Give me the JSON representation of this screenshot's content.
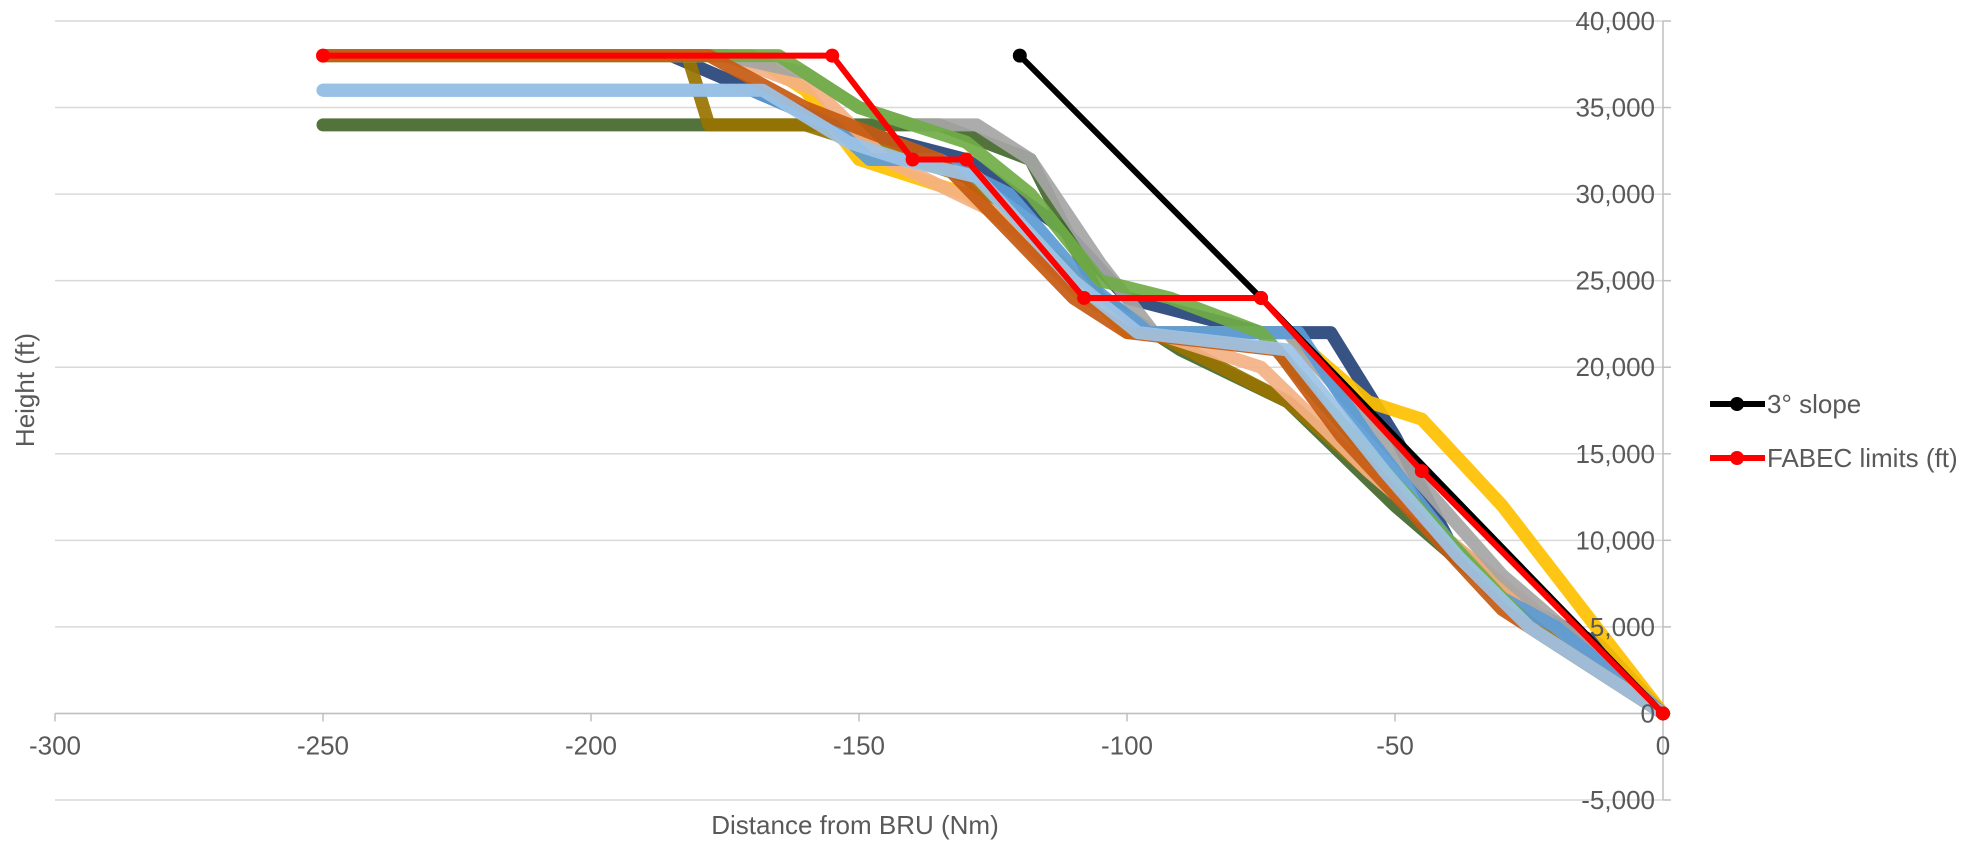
{
  "chart_data": {
    "type": "line",
    "title": "",
    "xlabel": "Distance from BRU (Nm)",
    "ylabel": "Height (ft)",
    "xlim": [
      -300,
      0
    ],
    "ylim": [
      -5000,
      40000
    ],
    "x_ticks": [
      -300,
      -250,
      -200,
      -150,
      -100,
      -50,
      0
    ],
    "y_ticks": [
      -5000,
      0,
      5000,
      10000,
      15000,
      20000,
      25000,
      30000,
      35000,
      40000
    ],
    "x_tick_labels": [
      "-300",
      "-250",
      "-200",
      "-150",
      "-100",
      "-50",
      "0"
    ],
    "y_tick_labels": [
      "-5,000",
      "0",
      "5,000",
      "10,000",
      "15,000",
      "20,000",
      "25,000",
      "30,000",
      "35,000",
      "40,000"
    ],
    "grid": "horizontal",
    "legend_position": "right",
    "legend": [
      "3° slope",
      "FABEC limits (ft)"
    ],
    "series": [
      {
        "name": "3° slope",
        "color": "#000000",
        "x": [
          -120,
          -75,
          0
        ],
        "y": [
          38000,
          24000,
          0
        ]
      },
      {
        "name": "FABEC limits (ft)",
        "color": "#ff0000",
        "x": [
          -250,
          -155,
          -140,
          -130,
          -108,
          -75,
          -45,
          0
        ],
        "y": [
          38000,
          38000,
          32000,
          32000,
          24000,
          24000,
          14000,
          0
        ]
      }
    ],
    "background_tracks": [
      {
        "color": "#264478",
        "x": [
          -250,
          -185,
          -170,
          -155,
          -130,
          -112,
          -100,
          -75,
          -62,
          -50,
          -40,
          -25,
          -12,
          0
        ],
        "y": [
          38000,
          38000,
          36000,
          34000,
          32000,
          28000,
          24000,
          22000,
          22000,
          16000,
          10000,
          6000,
          4000,
          0
        ]
      },
      {
        "color": "#43682b",
        "x": [
          -250,
          -160,
          -135,
          -118,
          -105,
          -90,
          -70,
          -50,
          -35,
          -20,
          0
        ],
        "y": [
          34000,
          34000,
          34000,
          32000,
          24000,
          21000,
          18000,
          12000,
          8000,
          5000,
          0
        ]
      },
      {
        "color": "#997300",
        "x": [
          -250,
          -182,
          -178,
          -160,
          -130,
          -108,
          -95,
          -70,
          -55,
          -40,
          -25,
          0
        ],
        "y": [
          38000,
          38000,
          34000,
          34000,
          31000,
          24000,
          22000,
          18000,
          14000,
          10000,
          6000,
          0
        ]
      },
      {
        "color": "#ffc000",
        "x": [
          -250,
          -170,
          -160,
          -150,
          -130,
          -112,
          -100,
          -70,
          -55,
          -45,
          -30,
          -15,
          0
        ],
        "y": [
          38000,
          38000,
          36000,
          32000,
          30000,
          26000,
          22000,
          22000,
          18000,
          17000,
          12000,
          6000,
          0
        ]
      },
      {
        "color": "#f4b183",
        "x": [
          -250,
          -175,
          -158,
          -145,
          -125,
          -108,
          -95,
          -75,
          -55,
          -40,
          -20,
          0
        ],
        "y": [
          38000,
          38000,
          36000,
          32000,
          29000,
          24000,
          22000,
          20000,
          14000,
          10000,
          5000,
          0
        ]
      },
      {
        "color": "#a5a5a5",
        "x": [
          -250,
          -175,
          -160,
          -150,
          -140,
          -128,
          -118,
          -105,
          -95,
          -70,
          -50,
          -30,
          0
        ],
        "y": [
          38000,
          38000,
          37000,
          35000,
          34000,
          34000,
          32000,
          26000,
          22000,
          22000,
          15000,
          8000,
          0
        ]
      },
      {
        "color": "#5b9bd5",
        "x": [
          -250,
          -170,
          -155,
          -148,
          -135,
          -122,
          -108,
          -96,
          -68,
          -55,
          -40,
          -32,
          -20,
          0
        ],
        "y": [
          36000,
          36000,
          34000,
          32000,
          32000,
          30000,
          25000,
          22000,
          22000,
          16000,
          10000,
          7000,
          5000,
          0
        ]
      },
      {
        "color": "#70ad47",
        "x": [
          -250,
          -165,
          -150,
          -130,
          -118,
          -105,
          -92,
          -75,
          -55,
          -40,
          -25,
          0
        ],
        "y": [
          38000,
          38000,
          35000,
          33000,
          30000,
          25000,
          24000,
          22000,
          15000,
          10000,
          5000,
          0
        ]
      },
      {
        "color": "#c55a11",
        "x": [
          -250,
          -178,
          -160,
          -135,
          -110,
          -100,
          -72,
          -60,
          -45,
          -30,
          0
        ],
        "y": [
          38000,
          38000,
          35000,
          32000,
          24000,
          22000,
          21000,
          16000,
          11000,
          6000,
          0
        ]
      },
      {
        "color": "#9dc3e6",
        "x": [
          -250,
          -168,
          -152,
          -142,
          -128,
          -110,
          -98,
          -70,
          -52,
          -38,
          -25,
          0
        ],
        "y": [
          36000,
          36000,
          33000,
          32000,
          31000,
          25000,
          22000,
          21000,
          14000,
          9000,
          5000,
          0
        ]
      }
    ]
  }
}
